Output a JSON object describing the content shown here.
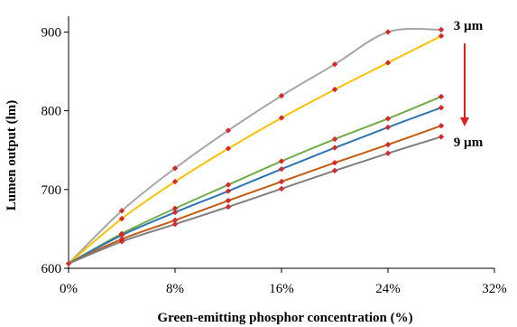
{
  "chart_data": {
    "type": "line",
    "title": "",
    "xlabel": "Green-emitting phosphor concentration (%)",
    "ylabel": "Lumen output (lm)",
    "xlim": [
      0,
      32
    ],
    "ylim": [
      600,
      920
    ],
    "x_ticks": [
      0,
      8,
      16,
      24,
      32
    ],
    "x_tick_labels": [
      "0%",
      "8%",
      "16%",
      "24%",
      "32%"
    ],
    "y_ticks": [
      600,
      700,
      800,
      900
    ],
    "y_tick_labels": [
      "600",
      "700",
      "800",
      "900"
    ],
    "grid": false,
    "legend": "none",
    "marker_color": "#d42a2a",
    "x": [
      0,
      4,
      8,
      12,
      16,
      20,
      24,
      28
    ],
    "series": [
      {
        "color": "#a6a6a6",
        "values": [
          606,
          673,
          727,
          775,
          819,
          859,
          900,
          903
        ]
      },
      {
        "color": "#ffc000",
        "values": [
          606,
          663,
          710,
          752,
          791,
          827,
          861,
          895
        ]
      },
      {
        "color": "#70ad47",
        "values": [
          606,
          644,
          676,
          706,
          736,
          764,
          790,
          818
        ]
      },
      {
        "color": "#2e75b6",
        "values": [
          606,
          642,
          671,
          698,
          726,
          753,
          779,
          804
        ]
      },
      {
        "color": "#c55a11",
        "values": [
          606,
          637,
          661,
          686,
          710,
          734,
          757,
          781
        ]
      },
      {
        "color": "#7f7f7f",
        "values": [
          606,
          634,
          656,
          678,
          701,
          724,
          746,
          767
        ]
      }
    ],
    "annotations": {
      "top_label": "3 µm",
      "bottom_label": "9 µm",
      "arrow_color": "#e02020"
    }
  }
}
